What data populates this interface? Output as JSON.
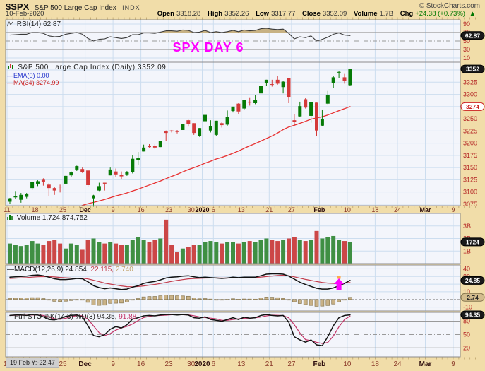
{
  "header": {
    "symbol": "$SPX",
    "name": "S&P 500 Large Cap Index",
    "exchange": "INDX",
    "copyright": "© StockCharts.com",
    "date": "10-Feb-2020",
    "quote": {
      "open_label": "Open",
      "open": "3318.28",
      "high_label": "High",
      "high": "3352.26",
      "low_label": "Low",
      "low": "3317.77",
      "close_label": "Close",
      "close": "3352.09",
      "volume_label": "Volume",
      "volume": "1.7B",
      "chg_label": "Chg",
      "chg": "+24.38 (+0.73%)",
      "chg_arrow": "▲"
    }
  },
  "panels": {
    "rsi": {
      "label": "RSI(14) 62.87",
      "pill": "62.87",
      "tick_labels": [
        90,
        70,
        50,
        30,
        10
      ]
    },
    "main": {
      "title": "S&P 500 Large Cap Index (Daily) 3352.09",
      "ema_label": "—EMA(0) 0.00",
      "ma_label": "—MA(34) 3274.99",
      "pill_close": "3352",
      "pill_ma": "3274",
      "grid": [
        3350,
        3325,
        3300,
        3275,
        3250,
        3225,
        3200,
        3175,
        3150,
        3125,
        3100,
        3075
      ],
      "tick_labels": [
        3325,
        3300,
        3250,
        3225,
        3200,
        3175,
        3150,
        3125,
        3100,
        3075
      ]
    },
    "volume": {
      "label": "Volume 1,724,874,752",
      "pill": "1724",
      "tick_labels": [
        [
          3,
          "3B"
        ],
        [
          2,
          "2B"
        ],
        [
          1,
          "1B"
        ]
      ]
    },
    "macd": {
      "label": "—MACD(12,26,9) 24.854,",
      "signal_text": "22.115,",
      "hist_text": "2.740",
      "pill_line": "24.85",
      "pill_hist": "2.74",
      "grid": [
        40,
        30,
        20,
        10,
        -10
      ],
      "tick_labels": [
        40,
        30,
        10,
        -10
      ]
    },
    "sto": {
      "label": "—Full STO %K(14,3) %D(3) 94.35,",
      "d_text": "91.88",
      "pill": "94.35",
      "tick_labels": [
        80,
        50,
        20
      ]
    }
  },
  "annotations": {
    "banner": "SPX DAY 6",
    "crosshair": "19 Feb Y:-22.47"
  },
  "x_axis": {
    "ticks": [
      {
        "label": "11",
        "day": 0,
        "bold": false
      },
      {
        "label": "18",
        "day": 5,
        "bold": false
      },
      {
        "label": "25",
        "day": 10,
        "bold": false
      },
      {
        "label": "Dec",
        "day": 14,
        "bold": true
      },
      {
        "label": "9",
        "day": 19,
        "bold": false
      },
      {
        "label": "16",
        "day": 24,
        "bold": false
      },
      {
        "label": "23",
        "day": 29,
        "bold": false
      },
      {
        "label": "30",
        "day": 33,
        "bold": false
      },
      {
        "label": "2020",
        "day": 35,
        "bold": true
      },
      {
        "label": "6",
        "day": 37,
        "bold": false
      },
      {
        "label": "13",
        "day": 42,
        "bold": false
      },
      {
        "label": "21",
        "day": 47,
        "bold": false
      },
      {
        "label": "27",
        "day": 51,
        "bold": false
      },
      {
        "label": "Feb",
        "day": 56,
        "bold": true
      },
      {
        "label": "10",
        "day": 61,
        "bold": false
      },
      {
        "label": "18",
        "day": 66,
        "bold": false
      },
      {
        "label": "24",
        "day": 70,
        "bold": false
      },
      {
        "label": "Mar",
        "day": 75,
        "bold": true
      },
      {
        "label": "9",
        "day": 80,
        "bold": false
      }
    ],
    "total_days": 85
  },
  "chart_data": {
    "type": "candlestick",
    "title": "S&P 500 Large Cap Index (Daily)",
    "x_range": [
      "11-Nov-2019",
      "9-Mar-2020"
    ],
    "last_close": 3352.09,
    "ma34_last": 3274.99,
    "ylim_main": [
      3072,
      3366
    ],
    "candles": [
      [
        3080,
        3088,
        3076,
        3087
      ],
      [
        3089,
        3102,
        3085,
        3092
      ],
      [
        3084,
        3098,
        3078,
        3094
      ],
      [
        3090,
        3098,
        3087,
        3096
      ],
      [
        3108,
        3120,
        3104,
        3120
      ],
      [
        3117,
        3124,
        3112,
        3122
      ],
      [
        3125,
        3128,
        3113,
        3120
      ],
      [
        3115,
        3118,
        3091,
        3108
      ],
      [
        3108,
        3110,
        3094,
        3103
      ],
      [
        3111,
        3115,
        3099,
        3110
      ],
      [
        3117,
        3133,
        3117,
        3133
      ],
      [
        3134,
        3142,
        3131,
        3140
      ],
      [
        3146,
        3154,
        3143,
        3153
      ],
      [
        3147,
        3150,
        3139,
        3141
      ],
      [
        3144,
        3144,
        3110,
        3114
      ],
      [
        3087,
        3094,
        3070,
        3093
      ],
      [
        3103,
        3119,
        3102,
        3112
      ],
      [
        3119,
        3119,
        3103,
        3117
      ],
      [
        3134,
        3150,
        3134,
        3146
      ],
      [
        3142,
        3148,
        3130,
        3136
      ],
      [
        3135,
        3142,
        3126,
        3132
      ],
      [
        3136,
        3143,
        3133,
        3141
      ],
      [
        3141,
        3176,
        3138,
        3168
      ],
      [
        3166,
        3182,
        3156,
        3169
      ],
      [
        3183,
        3197,
        3183,
        3191
      ],
      [
        3195,
        3198,
        3191,
        3192
      ],
      [
        3195,
        3198,
        3188,
        3191
      ],
      [
        3192,
        3205,
        3192,
        3205
      ],
      [
        3224,
        3226,
        3205,
        3221
      ],
      [
        3226,
        3227,
        3222,
        3224
      ],
      [
        3225,
        3227,
        3220,
        3223
      ],
      [
        3227,
        3240,
        3227,
        3240
      ],
      [
        3247,
        3248,
        3234,
        3240
      ],
      [
        3241,
        3241,
        3217,
        3221
      ],
      [
        3215,
        3231,
        3213,
        3231
      ],
      [
        3245,
        3258,
        3235,
        3258
      ],
      [
        3226,
        3247,
        3222,
        3235
      ],
      [
        3217,
        3246,
        3214,
        3246
      ],
      [
        3241,
        3244,
        3232,
        3237
      ],
      [
        3238,
        3267,
        3236,
        3253
      ],
      [
        3266,
        3275,
        3263,
        3275
      ],
      [
        3281,
        3282,
        3260,
        3265
      ],
      [
        3271,
        3288,
        3268,
        3288
      ],
      [
        3285,
        3294,
        3277,
        3283
      ],
      [
        3282,
        3298,
        3280,
        3289
      ],
      [
        3302,
        3317,
        3302,
        3317
      ],
      [
        3324,
        3330,
        3318,
        3330
      ],
      [
        3321,
        3330,
        3316,
        3320
      ],
      [
        3330,
        3337,
        3320,
        3322
      ],
      [
        3315,
        3327,
        3302,
        3326
      ],
      [
        3334,
        3334,
        3282,
        3295
      ],
      [
        3247,
        3259,
        3235,
        3244
      ],
      [
        3255,
        3285,
        3253,
        3276
      ],
      [
        3290,
        3293,
        3271,
        3273
      ],
      [
        3256,
        3285,
        3242,
        3284
      ],
      [
        3283,
        3283,
        3214,
        3226
      ],
      [
        3236,
        3269,
        3235,
        3249
      ],
      [
        3281,
        3307,
        3280,
        3298
      ],
      [
        3324,
        3338,
        3313,
        3335
      ],
      [
        3345,
        3348,
        3334,
        3346
      ],
      [
        3335,
        3342,
        3322,
        3328
      ],
      [
        3319,
        3352,
        3318,
        3352
      ]
    ],
    "volume_b": [
      1.6,
      1.5,
      1.4,
      1.5,
      1.8,
      1.6,
      1.5,
      1.8,
      1.9,
      1.6,
      1.2,
      1.6,
      1.5,
      1.1,
      1.9,
      2.0,
      1.7,
      1.6,
      1.7,
      1.6,
      1.5,
      1.5,
      1.9,
      2.1,
      1.9,
      1.7,
      1.9,
      2.0,
      3.5,
      1.5,
      0.9,
      1.2,
      1.3,
      1.5,
      1.5,
      1.7,
      1.8,
      1.7,
      1.6,
      1.7,
      1.7,
      1.6,
      1.7,
      1.8,
      1.7,
      1.9,
      2.0,
      1.9,
      1.8,
      1.9,
      2.0,
      2.1,
      1.9,
      1.8,
      1.9,
      2.6,
      2.0,
      2.1,
      2.2,
      1.9,
      1.8,
      1.72
    ],
    "rsi14": [
      64,
      65,
      66,
      66,
      70,
      70,
      68,
      62,
      60,
      61,
      66,
      68,
      70,
      66,
      56,
      50,
      54,
      55,
      60,
      58,
      56,
      58,
      65,
      65,
      69,
      69,
      68,
      71,
      74,
      74,
      73,
      76,
      75,
      70,
      71,
      75,
      70,
      72,
      70,
      72,
      75,
      72,
      76,
      74,
      75,
      79,
      80,
      78,
      77,
      78,
      68,
      55,
      60,
      58,
      62,
      50,
      54,
      59,
      66,
      69,
      64,
      62.87
    ],
    "macd": [
      29,
      29.5,
      30,
      30.5,
      31.5,
      32,
      31,
      29,
      27,
      26,
      26,
      26.5,
      27.5,
      27,
      23,
      18,
      15.5,
      14,
      15,
      14,
      13,
      13.5,
      16,
      18,
      21,
      22.5,
      23.5,
      25.5,
      28,
      29,
      29.5,
      30.5,
      31,
      29.5,
      28.5,
      29,
      28.5,
      28,
      27.5,
      28,
      29,
      28.5,
      29,
      29,
      29,
      31,
      33,
      33.5,
      33.5,
      33,
      30.5,
      26.5,
      22.5,
      19.5,
      17,
      14.5,
      13.5,
      13.5,
      15,
      18,
      21,
      24.854
    ],
    "macd_signal": [
      27.5,
      27.8,
      28.2,
      28.6,
      29.1,
      29.6,
      29.9,
      29.8,
      29.4,
      28.8,
      28.3,
      27.9,
      27.8,
      27.7,
      26.8,
      25.1,
      23.2,
      21.4,
      20.1,
      18.9,
      17.7,
      16.8,
      16.6,
      16.9,
      17.7,
      18.7,
      19.6,
      20.8,
      22.2,
      23.6,
      24.8,
      25.9,
      26.9,
      27.4,
      27.6,
      27.9,
      28.0,
      28.0,
      27.9,
      27.9,
      28.1,
      28.2,
      28.4,
      28.5,
      28.6,
      29.1,
      29.9,
      30.6,
      31.2,
      31.6,
      31.0,
      29.5,
      27.8,
      26.2,
      24.8,
      23.4,
      22.2,
      21.4,
      21.0,
      21.1,
      21.5,
      22.115
    ],
    "sto_k": [
      93,
      94,
      94,
      93,
      95,
      94,
      90,
      84,
      83,
      86,
      91,
      93,
      94,
      90,
      70,
      48,
      45,
      50,
      62,
      68,
      65,
      72,
      85,
      88,
      92,
      93,
      92,
      94,
      95,
      95,
      94,
      95,
      94,
      88,
      87,
      90,
      84,
      82,
      80,
      84,
      88,
      84,
      89,
      87,
      88,
      93,
      95,
      93,
      92,
      93,
      78,
      45,
      38,
      33,
      38,
      27,
      25,
      45,
      70,
      88,
      93,
      94.35
    ]
  },
  "colors": {
    "bg": "#F1DDA9",
    "plot_bg": "#F3F5FB",
    "grid": "#CCDDEF",
    "panel_border": "#8C8C8C",
    "gray_line": "#9A9A9A",
    "candle_up": "#067A06",
    "candle_down": "#D43939",
    "vol_up": "#3F8F43",
    "vol_down": "#CC4747",
    "ma": "#E83030",
    "rsi_line": "#3A3A3A",
    "rsi_fill": "#C7B183",
    "macd_line": "#111111",
    "macd_signal": "#C23B4B",
    "hist_fill": "#C9B287",
    "hist_stroke": "#86764F",
    "sto_k": "#111111",
    "sto_d": "#C23366",
    "axis_text": "#B32222",
    "date_text": "#8B3A2A",
    "date_bold": "#2E0E0E",
    "annotation": "#FF00FF",
    "arrow_tip": "#FFA94D",
    "pill_dark": "#1A1A1A",
    "chg_green": "#007700"
  }
}
